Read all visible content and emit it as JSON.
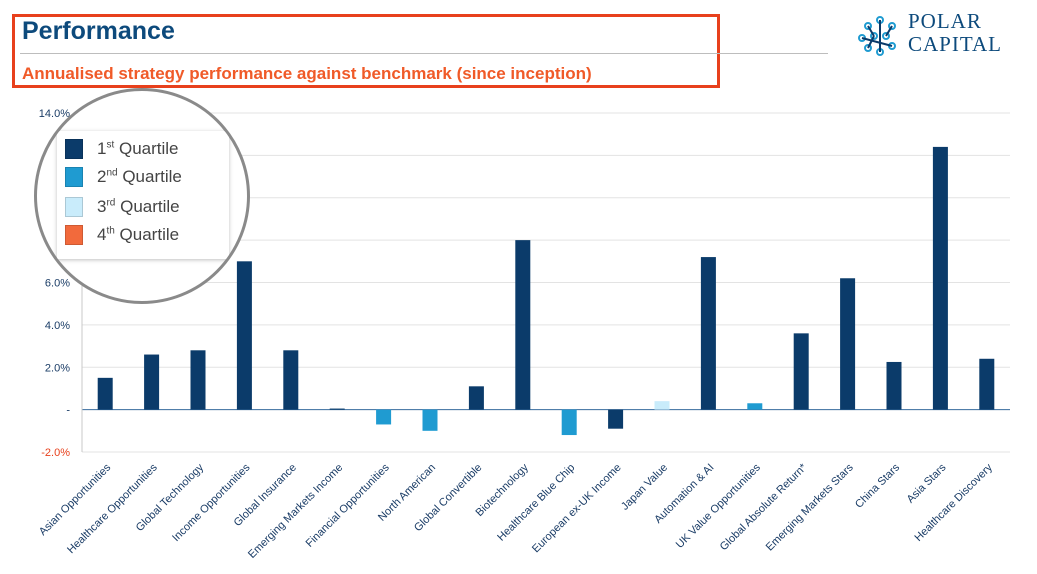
{
  "header": {
    "title": "Performance",
    "subtitle": "Annualised strategy performance against benchmark (since inception)"
  },
  "logo": {
    "line1": "POLAR",
    "line2": "CAPITAL"
  },
  "colors": {
    "q1": "#0b3b6a",
    "q2": "#1f9bd1",
    "q3": "#c9ecfb",
    "q4": "#f26a3c",
    "title": "#0d4a7c",
    "subtitle": "#f05a28",
    "frame": "#e8401c"
  },
  "legend": {
    "items": [
      {
        "num": "1",
        "sup": "st",
        "text": "Quartile",
        "color": "#0b3b6a"
      },
      {
        "num": "2",
        "sup": "nd",
        "text": "Quartile",
        "color": "#1f9bd1"
      },
      {
        "num": "3",
        "sup": "rd",
        "text": "Quartile",
        "color": "#c9ecfb"
      },
      {
        "num": "4",
        "sup": "th",
        "text": "Quartile",
        "color": "#f26a3c"
      }
    ]
  },
  "chart_data": {
    "type": "bar",
    "ylim": [
      -2.0,
      14.0
    ],
    "y_ticks": [
      {
        "value": 14.0,
        "label": "14.0%"
      },
      {
        "value": 6.0,
        "label": "6.0%"
      },
      {
        "value": 4.0,
        "label": "4.0%"
      },
      {
        "value": 2.0,
        "label": "2.0%"
      },
      {
        "value": 0.0,
        "label": "-"
      },
      {
        "value": -2.0,
        "label": "-2.0%"
      }
    ],
    "grid": true,
    "categories": [
      "Asian Opportunities",
      "Healthcare Opportunities",
      "Global Technology",
      "Income Opportunities",
      "Global Insurance",
      "Emerging Markets Income",
      "Financial Opportunities",
      "North American",
      "Global Convertible",
      "Biotechnology",
      "Healthcare Blue Chip",
      "European ex-UK Income",
      "Japan Value",
      "Automation & AI",
      "UK Value Opportunities",
      "Global Absolute Return*",
      "Emerging Markets Stars",
      "China Stars",
      "Asia Stars",
      "Healthcare Discovery"
    ],
    "values": [
      1.5,
      2.6,
      2.8,
      7.0,
      2.8,
      0.05,
      -0.7,
      -1.0,
      1.1,
      8.0,
      -1.2,
      -0.9,
      0.4,
      7.2,
      0.3,
      3.6,
      6.2,
      2.25,
      12.4,
      2.4
    ],
    "quartiles": [
      1,
      1,
      1,
      1,
      1,
      1,
      2,
      2,
      1,
      1,
      2,
      1,
      3,
      1,
      2,
      1,
      1,
      1,
      1,
      1
    ]
  }
}
